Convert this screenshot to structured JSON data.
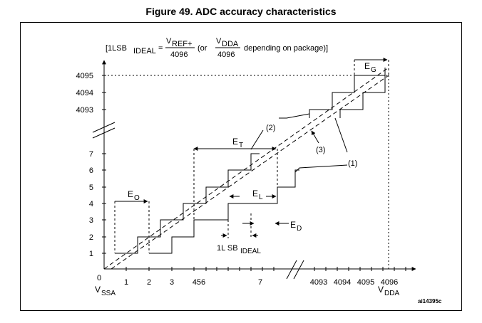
{
  "title": "Figure 49. ADC accuracy characteristics",
  "formula": {
    "open": "[1LSB",
    "ideal": "IDEAL",
    "eq": "=",
    "num1": "V",
    "num1_sub": "REF+",
    "den1": "4096",
    "mid": "(or",
    "num2": "V",
    "num2_sub": "DDA",
    "den2": "4096",
    "tail": "depending on package)]"
  },
  "y_ticks": [
    "1",
    "2",
    "3",
    "4",
    "5",
    "6",
    "7",
    "4093",
    "4094",
    "4095"
  ],
  "x_ticks": [
    "1",
    "2",
    "3",
    "456",
    "7",
    "4093",
    "4094",
    "4095",
    "4096"
  ],
  "origin": "0",
  "x_start": {
    "v": "V",
    "sub": "SSA"
  },
  "x_end": {
    "v": "V",
    "sub": "DDA"
  },
  "labels": {
    "eg": "E",
    "eg_sub": "G",
    "et": "E",
    "et_sub": "T",
    "eo": "E",
    "eo_sub": "O",
    "el": "E",
    "el_sub": "L",
    "ed": "E",
    "ed_sub": "D",
    "c1": "(1)",
    "c2": "(2)",
    "c3": "(3)",
    "lsb": "1L SB",
    "lsb_sub": "IDEAL"
  },
  "ref": "ai14395c"
}
